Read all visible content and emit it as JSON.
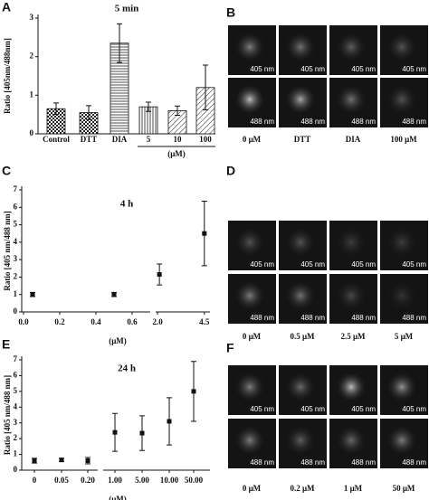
{
  "chart_data": [
    {
      "panel": "A",
      "type": "bar",
      "title": "5 min",
      "ylabel": "Ratio [405nm/488nm]",
      "categories": [
        "Control",
        "DTT",
        "DIA",
        "5",
        "10",
        "100"
      ],
      "group_label": "(μM)",
      "values": [
        0.65,
        0.55,
        2.35,
        0.7,
        0.6,
        1.2
      ],
      "errors": [
        0.15,
        0.18,
        0.5,
        0.12,
        0.12,
        0.58
      ],
      "patterns": [
        "checker",
        "checker",
        "hlines",
        "vlines",
        "diag",
        "diag"
      ],
      "ylim": [
        0,
        3
      ],
      "yticks": [
        0,
        1,
        2,
        3
      ]
    },
    {
      "panel": "C",
      "type": "errorbar",
      "title": "4 h",
      "ylabel": "Ratio [405 nm/488 nm]",
      "xlabel": "(μM)",
      "x": [
        0.05,
        0.5,
        2.1,
        4.5
      ],
      "values": [
        1.0,
        1.0,
        2.15,
        4.5
      ],
      "errors": [
        0.12,
        0.12,
        0.6,
        1.85
      ],
      "xsegments": [
        {
          "xlim": [
            0,
            0.7
          ],
          "xticks": [
            {
              "value": 0,
              "label": "0.0"
            },
            0.2,
            0.4,
            0.6
          ]
        },
        {
          "xlim": [
            1.9,
            4.8
          ],
          "xticks": [
            {
              "value": 2,
              "label": "2.0"
            },
            4.5
          ]
        }
      ],
      "ylim": [
        0,
        7
      ],
      "yticks": [
        0,
        1,
        2,
        3,
        4,
        5,
        6,
        7
      ]
    },
    {
      "panel": "E",
      "type": "errorbar",
      "title": "24 h",
      "ylabel": "Ratio [405 nm/488 nm]",
      "xlabel": "(μM)",
      "categories": [
        "0",
        "0.05",
        "0.20",
        "1.00",
        "5.00",
        "10.00",
        "50.00"
      ],
      "values": [
        0.6,
        0.65,
        0.6,
        2.4,
        2.35,
        3.1,
        5.0
      ],
      "errors": [
        0.15,
        0.1,
        0.2,
        1.2,
        1.1,
        1.5,
        1.9
      ],
      "ylim": [
        0,
        7
      ],
      "yticks": [
        0,
        1,
        2,
        3,
        4,
        5,
        6,
        7
      ]
    }
  ],
  "image_panels": [
    {
      "panel": "B",
      "row_labels": [
        "405 nm",
        "488 nm"
      ],
      "columns": [
        "0 μM",
        "DTT",
        "DIA",
        "100 μM"
      ]
    },
    {
      "panel": "D",
      "row_labels": [
        "405 nm",
        "488 nm"
      ],
      "columns": [
        "0 μM",
        "0.5 μM",
        "2.5 μM",
        "5 μM"
      ]
    },
    {
      "panel": "F",
      "row_labels": [
        "405 nm",
        "488 nm"
      ],
      "columns": [
        "0 μM",
        "0.2 μM",
        "1 μM",
        "50 μM"
      ]
    }
  ]
}
